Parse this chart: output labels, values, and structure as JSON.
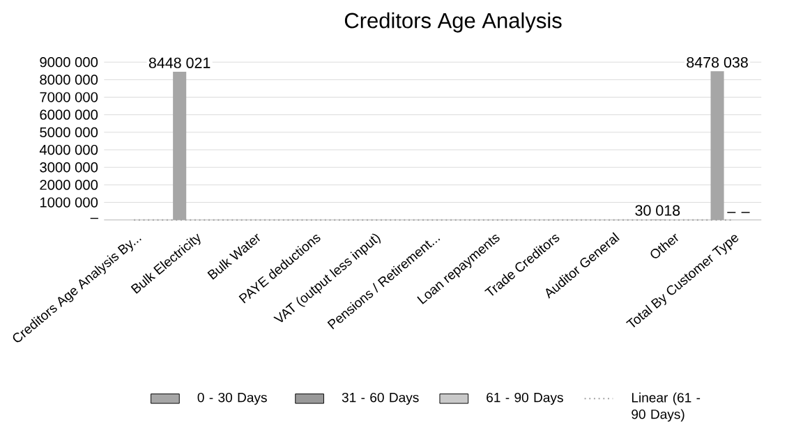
{
  "chart_data": {
    "type": "bar",
    "title": "Creditors Age Analysis",
    "categories": [
      "Creditors Age Analysis By...",
      "Bulk Electricity",
      "Bulk Water",
      "PAYE deductions",
      "VAT (output less input)",
      "Pensions / Retirement...",
      "Loan repayments",
      "Trade Creditors",
      "Auditor General",
      "Other",
      "Total By Customer Type"
    ],
    "series": [
      {
        "name": "0 - 30 Days",
        "color": "#a6a6a6",
        "values": [
          0,
          8448021,
          0,
          0,
          0,
          0,
          0,
          0,
          0,
          30018,
          8478038
        ],
        "value_labels": [
          null,
          "8448 021",
          null,
          null,
          null,
          null,
          null,
          null,
          null,
          "30 018",
          "8478 038"
        ]
      },
      {
        "name": "31 - 60 Days",
        "color": "#999999",
        "values": [
          0,
          0,
          0,
          0,
          0,
          0,
          0,
          0,
          0,
          0,
          0
        ],
        "value_labels": [
          null,
          null,
          null,
          null,
          null,
          null,
          null,
          null,
          null,
          null,
          "–"
        ]
      },
      {
        "name": "61 - 90 Days",
        "color": "#c9c9c9",
        "values": [
          0,
          0,
          0,
          0,
          0,
          0,
          0,
          0,
          0,
          0,
          0
        ],
        "value_labels": [
          null,
          null,
          null,
          null,
          null,
          null,
          null,
          null,
          null,
          null,
          "–"
        ]
      },
      {
        "name": "Linear (61 - 90 Days)",
        "type": "line",
        "line_style": "dotted",
        "color": "#a0a0a0",
        "values": [
          0,
          0,
          0,
          0,
          0,
          0,
          0,
          0,
          0,
          0,
          0
        ]
      }
    ],
    "ylim": [
      0,
      9000000
    ],
    "yticks": [
      {
        "value": 0,
        "label": "–"
      },
      {
        "value": 1000000,
        "label": "1000 000"
      },
      {
        "value": 2000000,
        "label": "2000 000"
      },
      {
        "value": 3000000,
        "label": "3000 000"
      },
      {
        "value": 4000000,
        "label": "4000 000"
      },
      {
        "value": 5000000,
        "label": "5000 000"
      },
      {
        "value": 6000000,
        "label": "6000 000"
      },
      {
        "value": 7000000,
        "label": "7000 000"
      },
      {
        "value": 8000000,
        "label": "8000 000"
      },
      {
        "value": 9000000,
        "label": "9000 000"
      }
    ],
    "grid": "y",
    "legend": "bottom"
  }
}
